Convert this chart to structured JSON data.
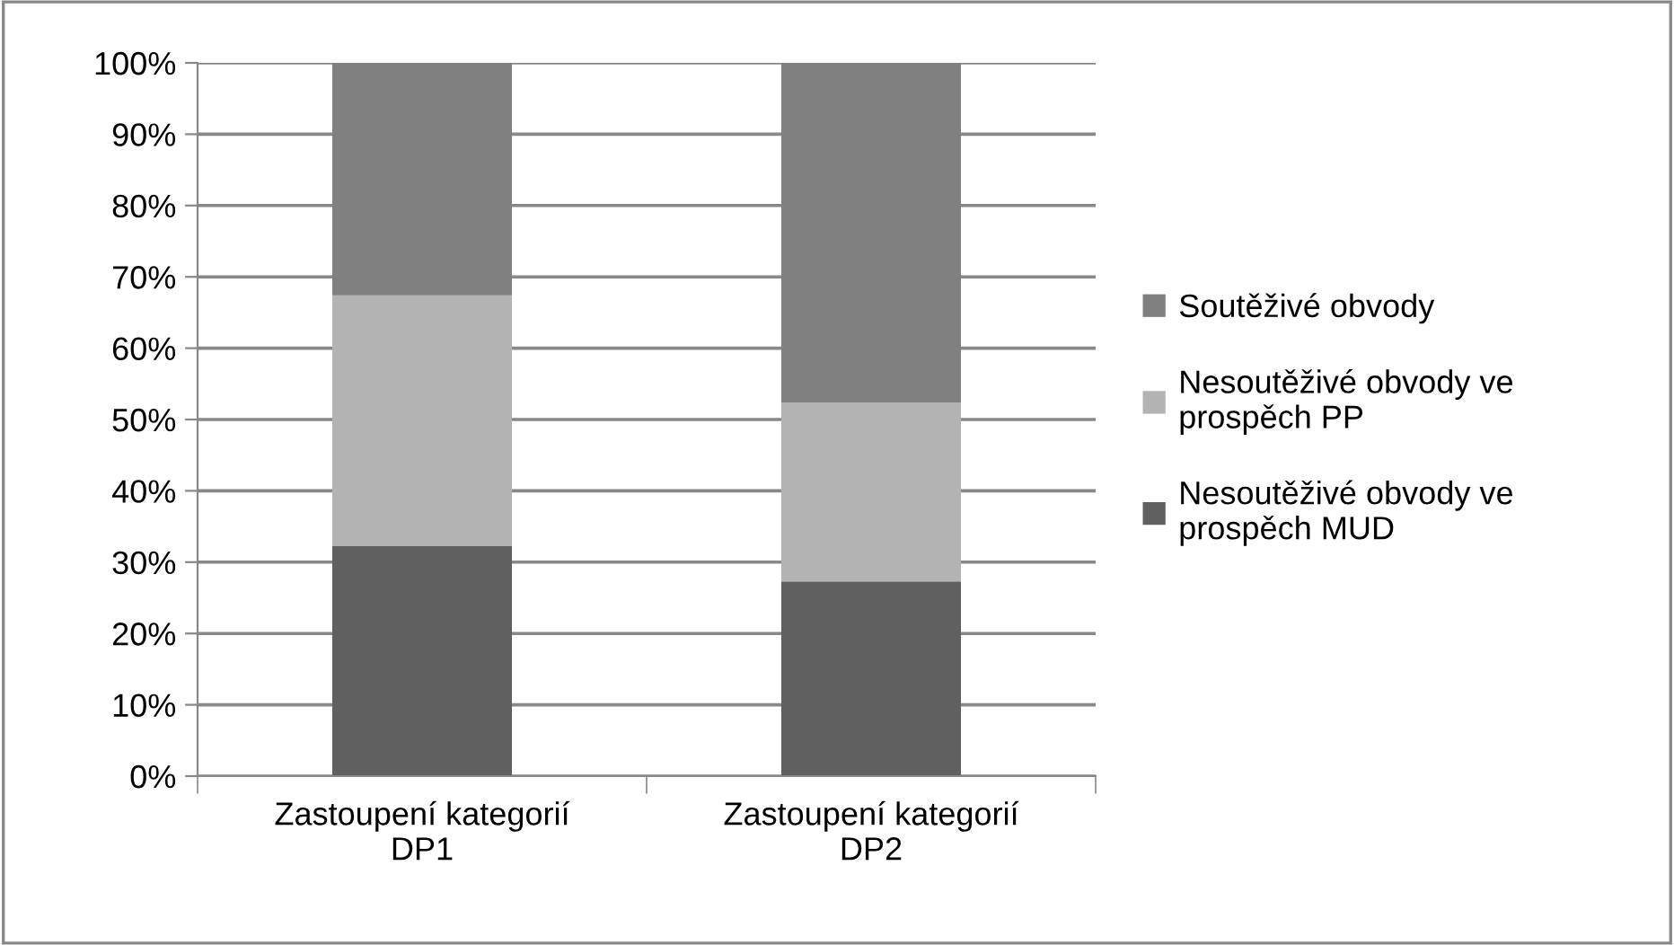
{
  "chart_data": {
    "type": "bar",
    "stacked": true,
    "categories": [
      "Zastoupení kategorií DP1",
      "Zastoupení kategorií DP2"
    ],
    "series": [
      {
        "name": "Nesoutěživé obvody ve prospěch MUD",
        "color": "#606060",
        "values": [
          32.3,
          27.3
        ]
      },
      {
        "name": "Nesoutěživé obvody ve prospěch PP",
        "color": "#b3b3b3",
        "values": [
          35.1,
          25.1
        ]
      },
      {
        "name": "Soutěživé obvody",
        "color": "#808080",
        "values": [
          32.6,
          47.6
        ]
      }
    ],
    "ylim": [
      0,
      100
    ],
    "yticks": [
      {
        "value": 0,
        "label": "0%"
      },
      {
        "value": 10,
        "label": "10%"
      },
      {
        "value": 20,
        "label": "20%"
      },
      {
        "value": 30,
        "label": "30%"
      },
      {
        "value": 40,
        "label": "40%"
      },
      {
        "value": 50,
        "label": "50%"
      },
      {
        "value": 60,
        "label": "60%"
      },
      {
        "value": 70,
        "label": "70%"
      },
      {
        "value": 80,
        "label": "80%"
      },
      {
        "value": 90,
        "label": "90%"
      },
      {
        "value": 100,
        "label": "100%"
      }
    ],
    "grid": "y",
    "legend": "right"
  }
}
